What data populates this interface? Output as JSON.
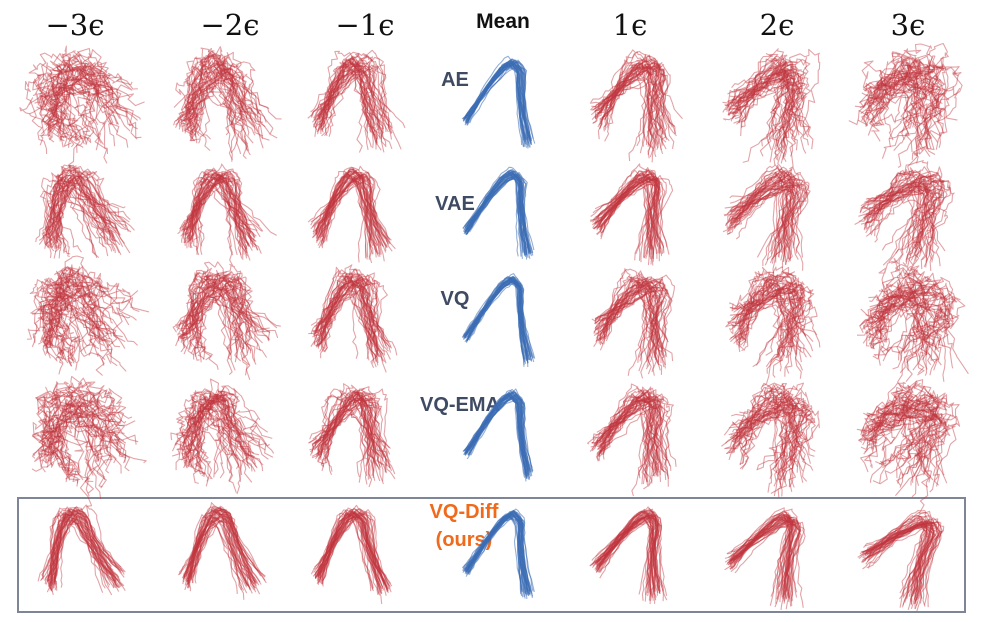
{
  "columns": [
    "−3ϵ",
    "−2ϵ",
    "−1ϵ",
    "Mean",
    "1ϵ",
    "2ϵ",
    "3ϵ"
  ],
  "rows": [
    {
      "label": "AE",
      "highlight": false
    },
    {
      "label": "VAE",
      "highlight": false
    },
    {
      "label": "VQ",
      "highlight": false
    },
    {
      "label": "VQ-EMA",
      "highlight": false
    },
    {
      "label": "VQ-Diff",
      "sublabel": "(ours)",
      "highlight": true
    }
  ],
  "colors": {
    "perturbed": "#c0363f",
    "mean": "#3d6db5",
    "highlight_label": "#f06a1b",
    "row_label": "#3f4a63",
    "box_border": "#7d8597"
  }
}
